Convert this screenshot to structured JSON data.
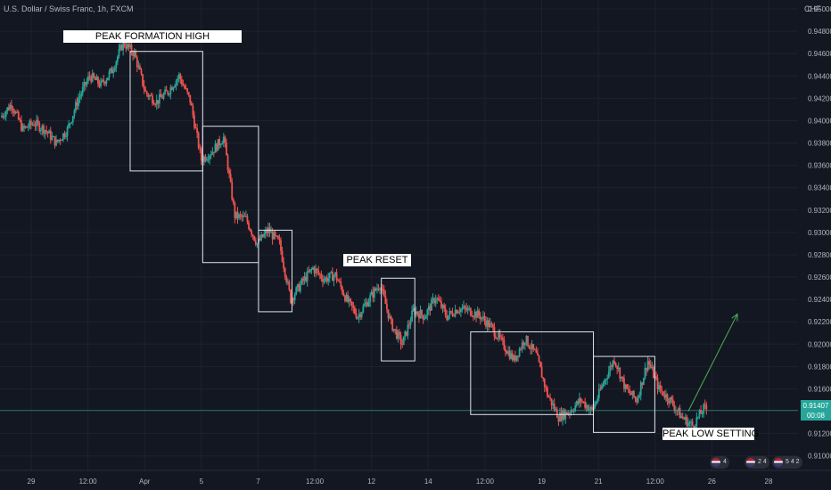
{
  "header": {
    "symbol_title": "U.S. Dollar / Swiss Franc, 1h, FXCM",
    "currency": "CHF"
  },
  "price_tag": {
    "price": "0.91407",
    "countdown": "00:08"
  },
  "annotations": {
    "peak_formation_high": "PEAK FORMATION HIGH",
    "peak_reset": "PEAK RESET",
    "peak_low_setting": "PEAK LOW SETTING"
  },
  "event_badges": [
    "4",
    "2 4",
    "5 4 2"
  ],
  "colors": {
    "background": "#131722",
    "up_candle": "#26a69a",
    "down_candle": "#ef5350",
    "grid": "#1e222d",
    "box_stroke": "#e0e3eb",
    "arrow": "#4caf50",
    "price_line": "#26a69a"
  },
  "chart_data": {
    "type": "candlestick",
    "title": "U.S. Dollar / Swiss Franc, 1h, FXCM",
    "y_axis": {
      "ticks": [
        0.91,
        0.912,
        0.914,
        0.916,
        0.918,
        0.92,
        0.922,
        0.924,
        0.926,
        0.928,
        0.93,
        0.932,
        0.934,
        0.936,
        0.938,
        0.94,
        0.942,
        0.944,
        0.946,
        0.948,
        0.95
      ],
      "tick_labels": [
        "0.91000",
        "0.91200",
        "0.91400",
        "0.91600",
        "0.91800",
        "0.92000",
        "0.92200",
        "0.92400",
        "0.92600",
        "0.92800",
        "0.93000",
        "0.93200",
        "0.93400",
        "0.93600",
        "0.93800",
        "0.94000",
        "0.94200",
        "0.94400",
        "0.94600",
        "0.94800",
        "0.95000"
      ],
      "range": [
        0.9087,
        0.9508
      ],
      "position": "right"
    },
    "x_axis": {
      "tick_labels": [
        "29",
        "12:00",
        "Apr",
        "5",
        "7",
        "12:00",
        "12",
        "14",
        "12:00",
        "19",
        "21",
        "12:00",
        "26",
        "28"
      ]
    },
    "grid": true,
    "current_price": 0.91407,
    "price_path": [
      {
        "x": 0,
        "y": 0.9403
      },
      {
        "x": 2,
        "y": 0.9415
      },
      {
        "x": 4,
        "y": 0.9392
      },
      {
        "x": 6,
        "y": 0.9398
      },
      {
        "x": 8,
        "y": 0.9392
      },
      {
        "x": 10,
        "y": 0.938
      },
      {
        "x": 12,
        "y": 0.9392
      },
      {
        "x": 14,
        "y": 0.942
      },
      {
        "x": 16,
        "y": 0.944
      },
      {
        "x": 18,
        "y": 0.9432
      },
      {
        "x": 20,
        "y": 0.9445
      },
      {
        "x": 22,
        "y": 0.947
      },
      {
        "x": 24,
        "y": 0.946
      },
      {
        "x": 26,
        "y": 0.9425
      },
      {
        "x": 28,
        "y": 0.9417
      },
      {
        "x": 30,
        "y": 0.9426
      },
      {
        "x": 32,
        "y": 0.944
      },
      {
        "x": 34,
        "y": 0.9418
      },
      {
        "x": 36,
        "y": 0.9365
      },
      {
        "x": 38,
        "y": 0.9373
      },
      {
        "x": 40,
        "y": 0.9385
      },
      {
        "x": 42,
        "y": 0.9315
      },
      {
        "x": 44,
        "y": 0.9312
      },
      {
        "x": 46,
        "y": 0.929
      },
      {
        "x": 48,
        "y": 0.9302
      },
      {
        "x": 50,
        "y": 0.929
      },
      {
        "x": 52,
        "y": 0.924
      },
      {
        "x": 54,
        "y": 0.9255
      },
      {
        "x": 56,
        "y": 0.9268
      },
      {
        "x": 58,
        "y": 0.9258
      },
      {
        "x": 60,
        "y": 0.9262
      },
      {
        "x": 62,
        "y": 0.924
      },
      {
        "x": 64,
        "y": 0.9225
      },
      {
        "x": 66,
        "y": 0.924
      },
      {
        "x": 68,
        "y": 0.9254
      },
      {
        "x": 70,
        "y": 0.9218
      },
      {
        "x": 72,
        "y": 0.92
      },
      {
        "x": 74,
        "y": 0.923
      },
      {
        "x": 76,
        "y": 0.9225
      },
      {
        "x": 78,
        "y": 0.9242
      },
      {
        "x": 80,
        "y": 0.9225
      },
      {
        "x": 82,
        "y": 0.9232
      },
      {
        "x": 84,
        "y": 0.923
      },
      {
        "x": 86,
        "y": 0.9225
      },
      {
        "x": 88,
        "y": 0.9215
      },
      {
        "x": 90,
        "y": 0.92
      },
      {
        "x": 92,
        "y": 0.9186
      },
      {
        "x": 94,
        "y": 0.9205
      },
      {
        "x": 96,
        "y": 0.919
      },
      {
        "x": 98,
        "y": 0.9155
      },
      {
        "x": 100,
        "y": 0.9135
      },
      {
        "x": 102,
        "y": 0.914
      },
      {
        "x": 104,
        "y": 0.915
      },
      {
        "x": 106,
        "y": 0.914
      },
      {
        "x": 108,
        "y": 0.9165
      },
      {
        "x": 110,
        "y": 0.9187
      },
      {
        "x": 112,
        "y": 0.916
      },
      {
        "x": 114,
        "y": 0.915
      },
      {
        "x": 116,
        "y": 0.9185
      },
      {
        "x": 118,
        "y": 0.916
      },
      {
        "x": 120,
        "y": 0.915
      },
      {
        "x": 122,
        "y": 0.9135
      },
      {
        "x": 124,
        "y": 0.9127
      },
      {
        "x": 126,
        "y": 0.9142
      }
    ],
    "annotations": [
      {
        "label": "PEAK FORMATION HIGH"
      },
      {
        "label": "PEAK RESET"
      },
      {
        "label": "PEAK LOW SETTING"
      }
    ],
    "boxes": [
      {
        "x0": 23,
        "x1": 36,
        "y0": 0.9355,
        "y1": 0.9462
      },
      {
        "x0": 36,
        "x1": 46,
        "y0": 0.9273,
        "y1": 0.9395
      },
      {
        "x0": 46,
        "x1": 52,
        "y0": 0.9229,
        "y1": 0.9302
      },
      {
        "x0": 68,
        "x1": 74,
        "y0": 0.9185,
        "y1": 0.9259
      },
      {
        "x0": 84,
        "x1": 106,
        "y0": 0.9137,
        "y1": 0.9211
      },
      {
        "x0": 106,
        "x1": 117,
        "y0": 0.9121,
        "y1": 0.9189
      }
    ],
    "x_range": [
      0,
      127
    ],
    "trend_arrow": {
      "from": {
        "x": 123,
        "y": 0.914
      },
      "to": {
        "x": 127,
        "y": 0.9227
      }
    }
  }
}
